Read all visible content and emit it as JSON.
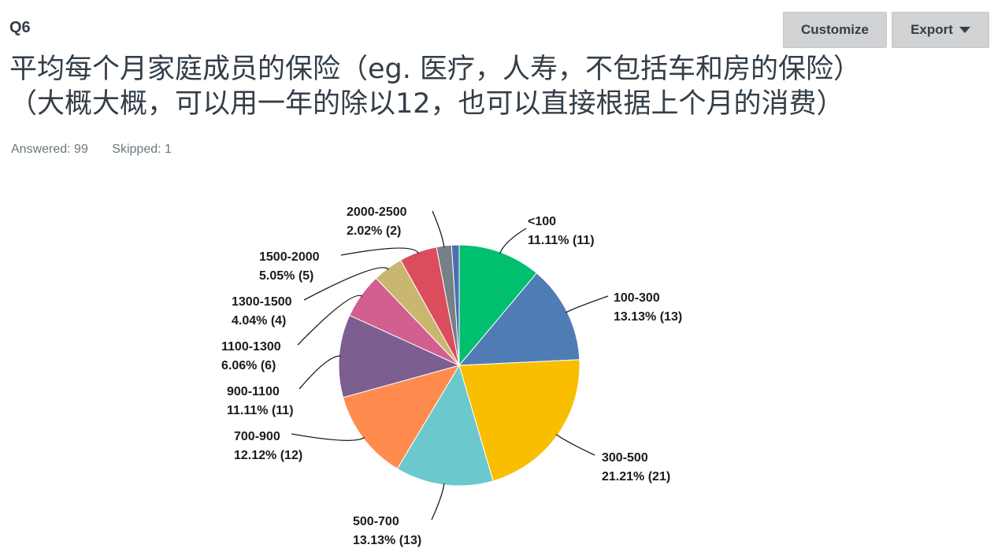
{
  "question": {
    "number": "Q6",
    "title_line1": "平均每个月家庭成员的保险（eg. 医疗，人寿，不包括车和房的保险）",
    "title_line2": "（大概大概，可以用一年的除以12，也可以直接根据上个月的消费）",
    "answered": "Answered: 99",
    "skipped": "Skipped: 1"
  },
  "toolbar": {
    "customize_label": "Customize",
    "export_label": "Export"
  },
  "chart_data": {
    "type": "pie",
    "slices": [
      {
        "label": "<100",
        "percent": 11.11,
        "count": 11,
        "pct_text": "11.11% (11)",
        "color": "#00bf6f"
      },
      {
        "label": "100-300",
        "percent": 13.13,
        "count": 13,
        "pct_text": "13.13% (13)",
        "color": "#507cb6"
      },
      {
        "label": "300-500",
        "percent": 21.21,
        "count": 21,
        "pct_text": "21.21% (21)",
        "color": "#f9be00"
      },
      {
        "label": "500-700",
        "percent": 13.13,
        "count": 13,
        "pct_text": "13.13% (13)",
        "color": "#6bc8cd"
      },
      {
        "label": "700-900",
        "percent": 12.12,
        "count": 12,
        "pct_text": "12.12% (12)",
        "color": "#ff8b4f"
      },
      {
        "label": "900-1100",
        "percent": 11.11,
        "count": 11,
        "pct_text": "11.11% (11)",
        "color": "#7d5e90"
      },
      {
        "label": "1100-1300",
        "percent": 6.06,
        "count": 6,
        "pct_text": "6.06% (6)",
        "color": "#d25f90"
      },
      {
        "label": "1300-1500",
        "percent": 4.04,
        "count": 4,
        "pct_text": "4.04% (4)",
        "color": "#c9b66f"
      },
      {
        "label": "1500-2000",
        "percent": 5.05,
        "count": 5,
        "pct_text": "5.05% (5)",
        "color": "#db4d5c"
      },
      {
        "label": "2000-2500",
        "percent": 2.02,
        "count": 2,
        "pct_text": "2.02% (2)",
        "color": "#768086"
      },
      {
        "label": "",
        "percent": 1.01,
        "count": 1,
        "pct_text": "",
        "color": "#4a6fb0"
      }
    ]
  }
}
